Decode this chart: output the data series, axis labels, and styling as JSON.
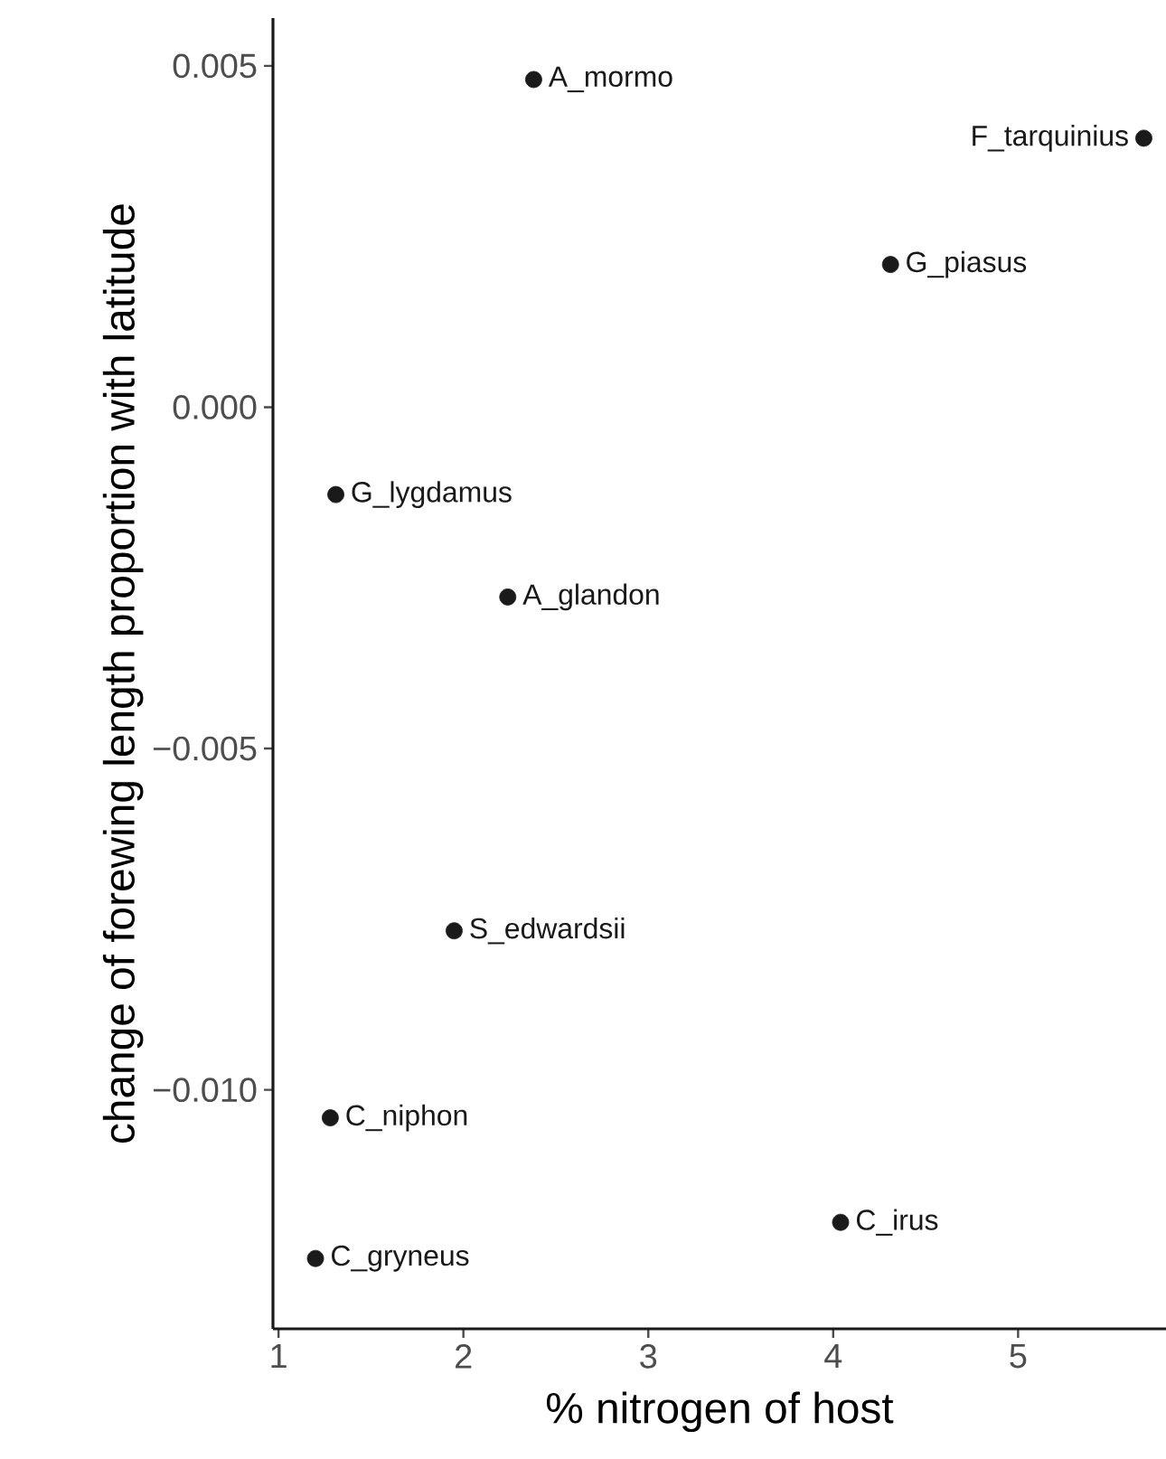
{
  "chart_data": {
    "type": "scatter",
    "xlabel": "% nitrogen of host",
    "ylabel": "change of forewing length proportion with latitude",
    "x": [
      2.38,
      5.68,
      4.31,
      1.31,
      2.24,
      1.95,
      1.28,
      4.04,
      1.2
    ],
    "values": [
      0.0048,
      0.00394,
      0.00209,
      -0.00128,
      -0.00278,
      -0.00767,
      -0.01041,
      -0.01194,
      -0.01247
    ],
    "color": "#1a1a1a",
    "xlim": [
      0.97,
      5.8
    ],
    "ylim": [
      -0.0135,
      0.0057
    ],
    "xticks": [
      1,
      2,
      3,
      4,
      5
    ],
    "yticks": [
      {
        "value": 0.005,
        "label": "0.005"
      },
      {
        "value": 0.0,
        "label": "0.000"
      },
      {
        "value": -0.005,
        "label": "−0.005"
      },
      {
        "value": -0.01,
        "label": "−0.010"
      }
    ],
    "annotations": [
      {
        "text": "A_mormo",
        "x": 2.38,
        "y": 0.0048
      },
      {
        "text": "F_tarquinius",
        "x": 5.68,
        "y": 0.00394
      },
      {
        "text": "G_piasus",
        "x": 4.31,
        "y": 0.00209
      },
      {
        "text": "G_lygdamus",
        "x": 1.31,
        "y": -0.00128
      },
      {
        "text": "A_glandon",
        "x": 2.24,
        "y": -0.00278
      },
      {
        "text": "S_edwardsii",
        "x": 1.95,
        "y": -0.00767
      },
      {
        "text": "C_niphon",
        "x": 1.28,
        "y": -0.01041
      },
      {
        "text": "C_irus",
        "x": 4.04,
        "y": -0.01194
      },
      {
        "text": "C_gryneus",
        "x": 1.2,
        "y": -0.01247
      }
    ]
  }
}
